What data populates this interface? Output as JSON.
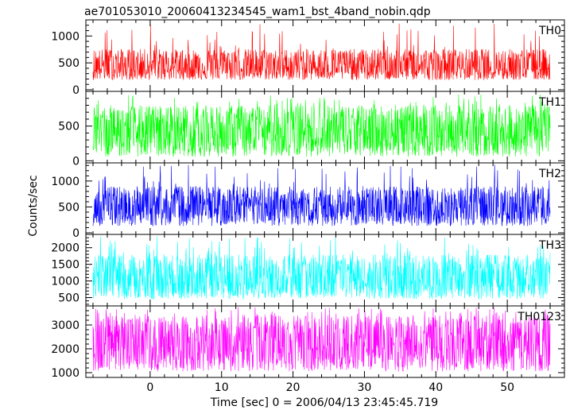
{
  "chart_data": {
    "type": "line",
    "title": "ae701053010_20060413234545_wam1_bst_4band_nobin.qdp",
    "xlabel": "Time [sec] 0 = 2006/04/13 23:45:45.719",
    "ylabel": "Counts/sec",
    "xlim": [
      -9,
      58
    ],
    "x_ticks": [
      0,
      10,
      20,
      30,
      40,
      50
    ],
    "x_range_of_data": [
      -8,
      56
    ],
    "grid": false,
    "panels": [
      {
        "name": "TH0",
        "color": "#ff0000",
        "ylim": [
          -30,
          1300
        ],
        "y_ticks": [
          0,
          500,
          1000
        ],
        "typical_range": [
          180,
          760
        ],
        "mean": 430,
        "peak": 1300
      },
      {
        "name": "TH1",
        "color": "#00ff00",
        "ylim": [
          -30,
          1000
        ],
        "y_ticks": [
          0,
          500
        ],
        "typical_range": [
          60,
          800
        ],
        "mean": 400,
        "peak": 960
      },
      {
        "name": "TH2",
        "color": "#0000ff",
        "ylim": [
          -30,
          1350
        ],
        "y_ticks": [
          0,
          500,
          1000
        ],
        "typical_range": [
          130,
          900
        ],
        "mean": 480,
        "peak": 1320
      },
      {
        "name": "TH3",
        "color": "#00ffff",
        "ylim": [
          250,
          2400
        ],
        "y_ticks": [
          500,
          1000,
          1500,
          2000
        ],
        "typical_range": [
          450,
          1800
        ],
        "mean": 1000,
        "peak": 2350
      },
      {
        "name": "TH0123",
        "color": "#ff00ff",
        "ylim": [
          800,
          3800
        ],
        "y_ticks": [
          1000,
          2000,
          3000
        ],
        "typical_range": [
          1050,
          3400
        ],
        "mean": 2200,
        "peak": 3750
      }
    ]
  }
}
